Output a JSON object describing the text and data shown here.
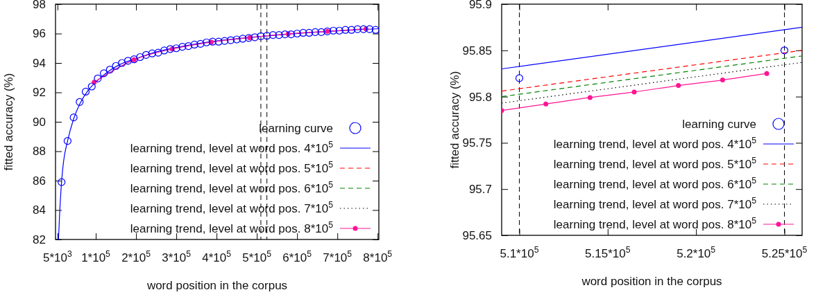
{
  "chart_data": [
    {
      "type": "line",
      "xlabel": "word position in the corpus",
      "ylabel": "fitted accuracy (%)",
      "xlim": [
        0,
        803000
      ],
      "ylim": [
        82,
        98
      ],
      "xticks": [
        {
          "value": 5000,
          "label": "5*10$^{3}$"
        },
        {
          "value": 100000,
          "label": "1*10$^{5}$"
        },
        {
          "value": 200000,
          "label": "2*10$^{5}$"
        },
        {
          "value": 300000,
          "label": "3*10$^{5}$"
        },
        {
          "value": 400000,
          "label": "4*10$^{5}$"
        },
        {
          "value": 500000,
          "label": "5*10$^{5}$"
        },
        {
          "value": 600000,
          "label": "6*10$^{5}$"
        },
        {
          "value": 700000,
          "label": "7*10$^{5}$"
        },
        {
          "value": 800000,
          "label": "8*10$^{5}$"
        }
      ],
      "yticks": [
        82,
        84,
        86,
        88,
        90,
        92,
        94,
        96,
        98
      ],
      "grid": false,
      "legend": "bottom right",
      "ref_lines": [
        {
          "axis": "x",
          "value": 510000,
          "color": "#000000",
          "line_style": "dashed"
        },
        {
          "axis": "x",
          "value": 525000,
          "color": "#000000",
          "line_style": "dashed"
        }
      ],
      "series": [
        {
          "name": "learning curve",
          "type": "scatter",
          "marker": "circle",
          "color": "#0000ff",
          "x": [
            15000,
            30000,
            45000,
            60000,
            75000,
            90000,
            105000,
            120000,
            135000,
            150000,
            165000,
            180000,
            195000,
            210000,
            225000,
            240000,
            255000,
            270000,
            285000,
            300000,
            315000,
            330000,
            345000,
            360000,
            375000,
            390000,
            405000,
            420000,
            435000,
            450000,
            465000,
            480000,
            495000,
            510000,
            525000,
            540000,
            555000,
            570000,
            585000,
            600000,
            615000,
            630000,
            645000,
            660000,
            675000,
            690000,
            705000,
            720000,
            735000,
            750000,
            765000,
            780000,
            795000
          ],
          "values": [
            85.9,
            88.7,
            90.3,
            91.35,
            92.05,
            92.4,
            92.95,
            93.3,
            93.55,
            93.8,
            94.0,
            94.15,
            94.25,
            94.4,
            94.55,
            94.65,
            94.7,
            94.85,
            94.95,
            95.0,
            95.1,
            95.15,
            95.25,
            95.3,
            95.4,
            95.45,
            95.45,
            95.5,
            95.55,
            95.6,
            95.65,
            95.7,
            95.75,
            95.82,
            95.85,
            95.9,
            95.9,
            95.95,
            95.95,
            96.0,
            96.05,
            96.05,
            96.1,
            96.1,
            96.15,
            96.2,
            96.2,
            96.25,
            96.25,
            96.3,
            96.3,
            96.3,
            96.25
          ]
        },
        {
          "name": "learning trend, level at word pos. 4*10$^{5}$",
          "type": "line",
          "line_style": "solid",
          "marker": "none",
          "color": "#0000ff",
          "x": [
            7400,
            10000,
            15000,
            20000,
            30000,
            45000,
            60000,
            80000,
            100000,
            130000,
            160000,
            200000,
            250000,
            300000,
            350000,
            400000,
            450000,
            500000,
            550000,
            600000,
            650000,
            700000,
            750000,
            803000
          ],
          "values": [
            82,
            83.6,
            85.9,
            87.3,
            88.7,
            90.2,
            91.2,
            92.1,
            92.7,
            93.4,
            93.9,
            94.3,
            94.75,
            95.05,
            95.3,
            95.5,
            95.65,
            95.78,
            95.9,
            96.0,
            96.1,
            96.18,
            96.26,
            96.33
          ]
        },
        {
          "name": "learning trend, level at word pos. 5*10$^{5}$",
          "type": "line",
          "line_style": "dashed",
          "marker": "none",
          "color": "#ff0000"
        },
        {
          "name": "learning trend, level at word pos. 6*10$^{5}$",
          "type": "line",
          "line_style": "dashed",
          "marker": "none",
          "color": "#008000"
        },
        {
          "name": "learning trend, level at word pos. 7*10$^{5}$",
          "type": "line",
          "line_style": "dotted",
          "marker": "none",
          "color": "#000000"
        },
        {
          "name": "learning trend, level at word pos. 8*10$^{5}$",
          "type": "line",
          "line_style": "solid",
          "marker": "circle",
          "color": "#ff1493",
          "x": [
            96000,
            195000,
            290000,
            387000,
            482000,
            578000,
            675000,
            771000
          ],
          "values": [
            92.7,
            94.22,
            94.95,
            95.42,
            95.72,
            95.98,
            96.15,
            96.32
          ]
        }
      ]
    },
    {
      "type": "line",
      "xlabel": "word position in the corpus",
      "ylabel": "fitted accuracy (%)",
      "xlim": [
        509000,
        526000
      ],
      "ylim": [
        95.65,
        95.9
      ],
      "xticks": [
        {
          "value": 510000,
          "label": "5.1*10$^{5}$"
        },
        {
          "value": 515000,
          "label": "5.15*10$^{5}$"
        },
        {
          "value": 520000,
          "label": "5.2*10$^{5}$"
        },
        {
          "value": 525000,
          "label": "5.25*10$^{5}$"
        }
      ],
      "yticks": [
        95.65,
        95.7,
        95.75,
        95.8,
        95.85,
        95.9
      ],
      "grid": false,
      "legend": "bottom right",
      "ref_lines": [
        {
          "axis": "x",
          "value": 510000,
          "color": "#000000",
          "line_style": "dashed"
        },
        {
          "axis": "x",
          "value": 525000,
          "color": "#000000",
          "line_style": "dashed"
        }
      ],
      "series": [
        {
          "name": "learning curve",
          "type": "scatter",
          "marker": "circle",
          "color": "#0000ff",
          "x": [
            510000,
            525000
          ],
          "values": [
            95.82,
            95.85
          ]
        },
        {
          "name": "learning trend, level at word pos. 4*10$^{5}$",
          "type": "line",
          "line_style": "solid",
          "marker": "none",
          "color": "#0000ff",
          "x": [
            509000,
            526000
          ],
          "values": [
            95.83,
            95.875
          ]
        },
        {
          "name": "learning trend, level at word pos. 5*10$^{5}$",
          "type": "line",
          "line_style": "dashed",
          "marker": "none",
          "color": "#ff0000",
          "x": [
            509000,
            526000
          ],
          "values": [
            95.806,
            95.85
          ]
        },
        {
          "name": "learning trend, level at word pos. 6*10$^{5}$",
          "type": "line",
          "line_style": "dashed",
          "marker": "none",
          "color": "#008000",
          "x": [
            509000,
            526000
          ],
          "values": [
            95.8,
            95.844
          ]
        },
        {
          "name": "learning trend, level at word pos. 7*10$^{5}$",
          "type": "line",
          "line_style": "dotted",
          "marker": "none",
          "color": "#000000",
          "x": [
            509000,
            526000
          ],
          "values": [
            95.793,
            95.837
          ]
        },
        {
          "name": "learning trend, level at word pos. 8*10$^{5}$",
          "type": "line",
          "line_style": "solid",
          "marker": "circle",
          "color": "#ff1493",
          "x": [
            509000,
            511500,
            514000,
            516500,
            519000,
            521500,
            524000
          ],
          "values": [
            95.785,
            95.792,
            95.799,
            95.805,
            95.812,
            95.818,
            95.825
          ]
        }
      ]
    }
  ]
}
